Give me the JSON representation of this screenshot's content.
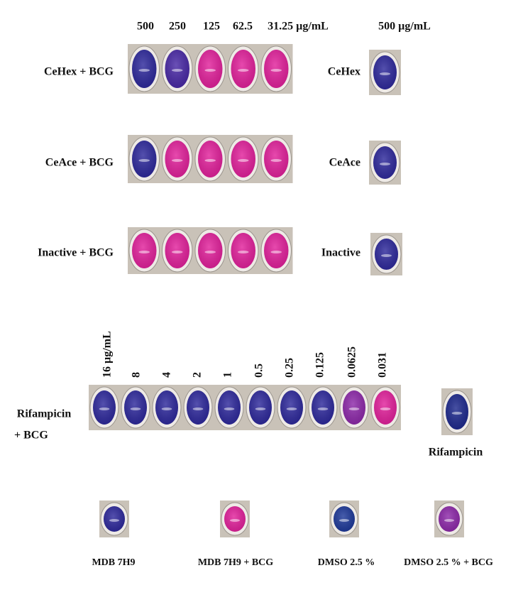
{
  "top_concentrations": [
    "500",
    "250",
    "125",
    "62.5",
    "31.25 µg/mL"
  ],
  "control_concentration": "500 µg/mL",
  "rows": [
    {
      "label": "CeHex + BCG",
      "control": "CeHex"
    },
    {
      "label": "CeAce + BCG",
      "control": "CeAce"
    },
    {
      "label": "Inactive + BCG",
      "control": "Inactive"
    }
  ],
  "rifampicin": {
    "concentrations": [
      "16 µg/mL",
      "8",
      "4",
      "2",
      "1",
      "0.5",
      "0.25",
      "0.125",
      "0.0625",
      "0.031"
    ],
    "label_lines": [
      "Rifampicin",
      "+ BCG"
    ],
    "control": "Rifampicin"
  },
  "controls": [
    "MDB 7H9",
    "MDB 7H9 + BCG",
    "DMSO 2.5 %",
    "DMSO 2.5 % + BCG"
  ]
}
